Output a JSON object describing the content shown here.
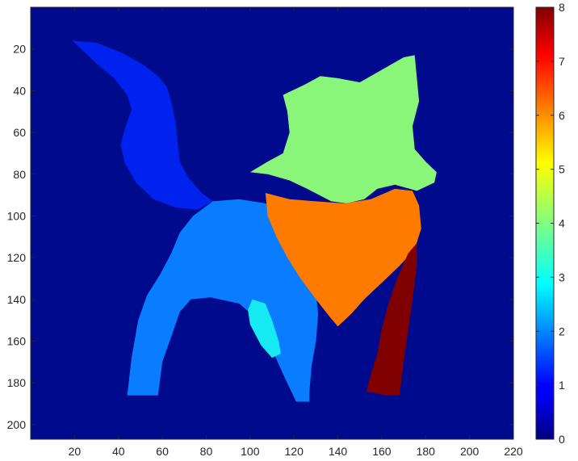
{
  "chart_data": {
    "type": "heatmap",
    "title": "",
    "xlabel": "",
    "ylabel": "",
    "xlim": [
      0,
      220
    ],
    "ylim": [
      207,
      0
    ],
    "x_ticks": [
      20,
      40,
      60,
      80,
      100,
      120,
      140,
      160,
      180,
      200,
      220
    ],
    "x_tick_labels": [
      "20",
      "40",
      "60",
      "80",
      "100",
      "120",
      "140",
      "160",
      "180",
      "200",
      "220"
    ],
    "y_ticks": [
      20,
      40,
      60,
      80,
      100,
      120,
      140,
      160,
      180,
      200
    ],
    "y_tick_labels": [
      "20",
      "40",
      "60",
      "80",
      "100",
      "120",
      "140",
      "160",
      "180",
      "200"
    ],
    "colormap": "jet",
    "colorbar": {
      "range": [
        0,
        8
      ],
      "ticks": [
        0,
        1,
        2,
        3,
        4,
        5,
        6,
        7,
        8
      ],
      "tick_labels": [
        "0",
        "1",
        "2",
        "3",
        "4",
        "5",
        "6",
        "7",
        "8"
      ]
    },
    "background_label": 0,
    "regions": [
      {
        "name": "tail",
        "label": 1,
        "color": "#0022ee",
        "points": [
          [
            19,
            16
          ],
          [
            30,
            17
          ],
          [
            42,
            22
          ],
          [
            52,
            28
          ],
          [
            58,
            33
          ],
          [
            62,
            38
          ],
          [
            64,
            45
          ],
          [
            66,
            55
          ],
          [
            67,
            65
          ],
          [
            68,
            74
          ],
          [
            72,
            82
          ],
          [
            78,
            89
          ],
          [
            83,
            93
          ],
          [
            76,
            97
          ],
          [
            66,
            96
          ],
          [
            56,
            92
          ],
          [
            48,
            84
          ],
          [
            43,
            75
          ],
          [
            41,
            66
          ],
          [
            43,
            58
          ],
          [
            46,
            49
          ],
          [
            44,
            42
          ],
          [
            38,
            34
          ],
          [
            30,
            27
          ],
          [
            23,
            20
          ]
        ]
      },
      {
        "name": "body",
        "label": 2,
        "color": "#0a7cff",
        "points": [
          [
            83,
            93
          ],
          [
            95,
            92
          ],
          [
            107,
            94
          ],
          [
            116,
            99
          ],
          [
            120,
            108
          ],
          [
            124,
            118
          ],
          [
            128,
            128
          ],
          [
            130,
            137
          ],
          [
            131,
            147
          ],
          [
            130,
            160
          ],
          [
            128,
            172
          ],
          [
            127,
            185
          ],
          [
            127,
            189
          ],
          [
            121,
            189
          ],
          [
            116,
            178
          ],
          [
            110,
            164
          ],
          [
            104,
            150
          ],
          [
            95,
            142
          ],
          [
            82,
            139
          ],
          [
            73,
            140
          ],
          [
            68,
            146
          ],
          [
            64,
            158
          ],
          [
            60,
            170
          ],
          [
            58,
            186
          ],
          [
            44,
            186
          ],
          [
            46,
            168
          ],
          [
            49,
            150
          ],
          [
            53,
            138
          ],
          [
            59,
            128
          ],
          [
            64,
            118
          ],
          [
            68,
            108
          ],
          [
            74,
            100
          ]
        ]
      },
      {
        "name": "leg-highlight",
        "label": 3,
        "color": "#16eaf2",
        "points": [
          [
            101,
            140
          ],
          [
            107,
            142
          ],
          [
            110,
            150
          ],
          [
            113,
            160
          ],
          [
            114,
            166
          ],
          [
            110,
            168
          ],
          [
            105,
            162
          ],
          [
            100,
            152
          ],
          [
            99,
            145
          ]
        ]
      },
      {
        "name": "head",
        "label": 4,
        "color": "#89f67a",
        "points": [
          [
            115,
            42
          ],
          [
            125,
            37
          ],
          [
            132,
            33
          ],
          [
            140,
            34
          ],
          [
            150,
            36
          ],
          [
            160,
            30
          ],
          [
            170,
            24
          ],
          [
            175,
            23
          ],
          [
            176,
            34
          ],
          [
            177,
            45
          ],
          [
            174,
            57
          ],
          [
            175,
            68
          ],
          [
            180,
            74
          ],
          [
            185,
            79
          ],
          [
            184,
            84
          ],
          [
            176,
            88
          ],
          [
            166,
            85
          ],
          [
            158,
            87
          ],
          [
            152,
            92
          ],
          [
            144,
            94
          ],
          [
            137,
            93
          ],
          [
            126,
            87
          ],
          [
            118,
            83
          ],
          [
            108,
            80
          ],
          [
            100,
            79
          ],
          [
            108,
            74
          ],
          [
            115,
            70
          ],
          [
            118,
            60
          ],
          [
            117,
            50
          ]
        ]
      },
      {
        "name": "scarf",
        "label": 6,
        "color": "#ff7b00",
        "points": [
          [
            107,
            89
          ],
          [
            118,
            92
          ],
          [
            130,
            93
          ],
          [
            143,
            94
          ],
          [
            155,
            92
          ],
          [
            166,
            87
          ],
          [
            174,
            88
          ],
          [
            177,
            95
          ],
          [
            178,
            106
          ],
          [
            175,
            116
          ],
          [
            168,
            124
          ],
          [
            160,
            132
          ],
          [
            152,
            140
          ],
          [
            146,
            147
          ],
          [
            140,
            153
          ],
          [
            136,
            148
          ],
          [
            130,
            140
          ],
          [
            123,
            130
          ],
          [
            117,
            120
          ],
          [
            112,
            110
          ],
          [
            108,
            100
          ]
        ]
      },
      {
        "name": "right-leg",
        "label": 8,
        "color": "#800000",
        "points": [
          [
            172,
            118
          ],
          [
            176,
            113
          ],
          [
            176,
            124
          ],
          [
            174,
            140
          ],
          [
            172,
            155
          ],
          [
            170,
            170
          ],
          [
            168,
            186
          ],
          [
            162,
            186
          ],
          [
            153,
            184
          ],
          [
            155,
            176
          ],
          [
            158,
            166
          ],
          [
            160,
            154
          ],
          [
            163,
            142
          ],
          [
            167,
            130
          ]
        ]
      }
    ]
  }
}
